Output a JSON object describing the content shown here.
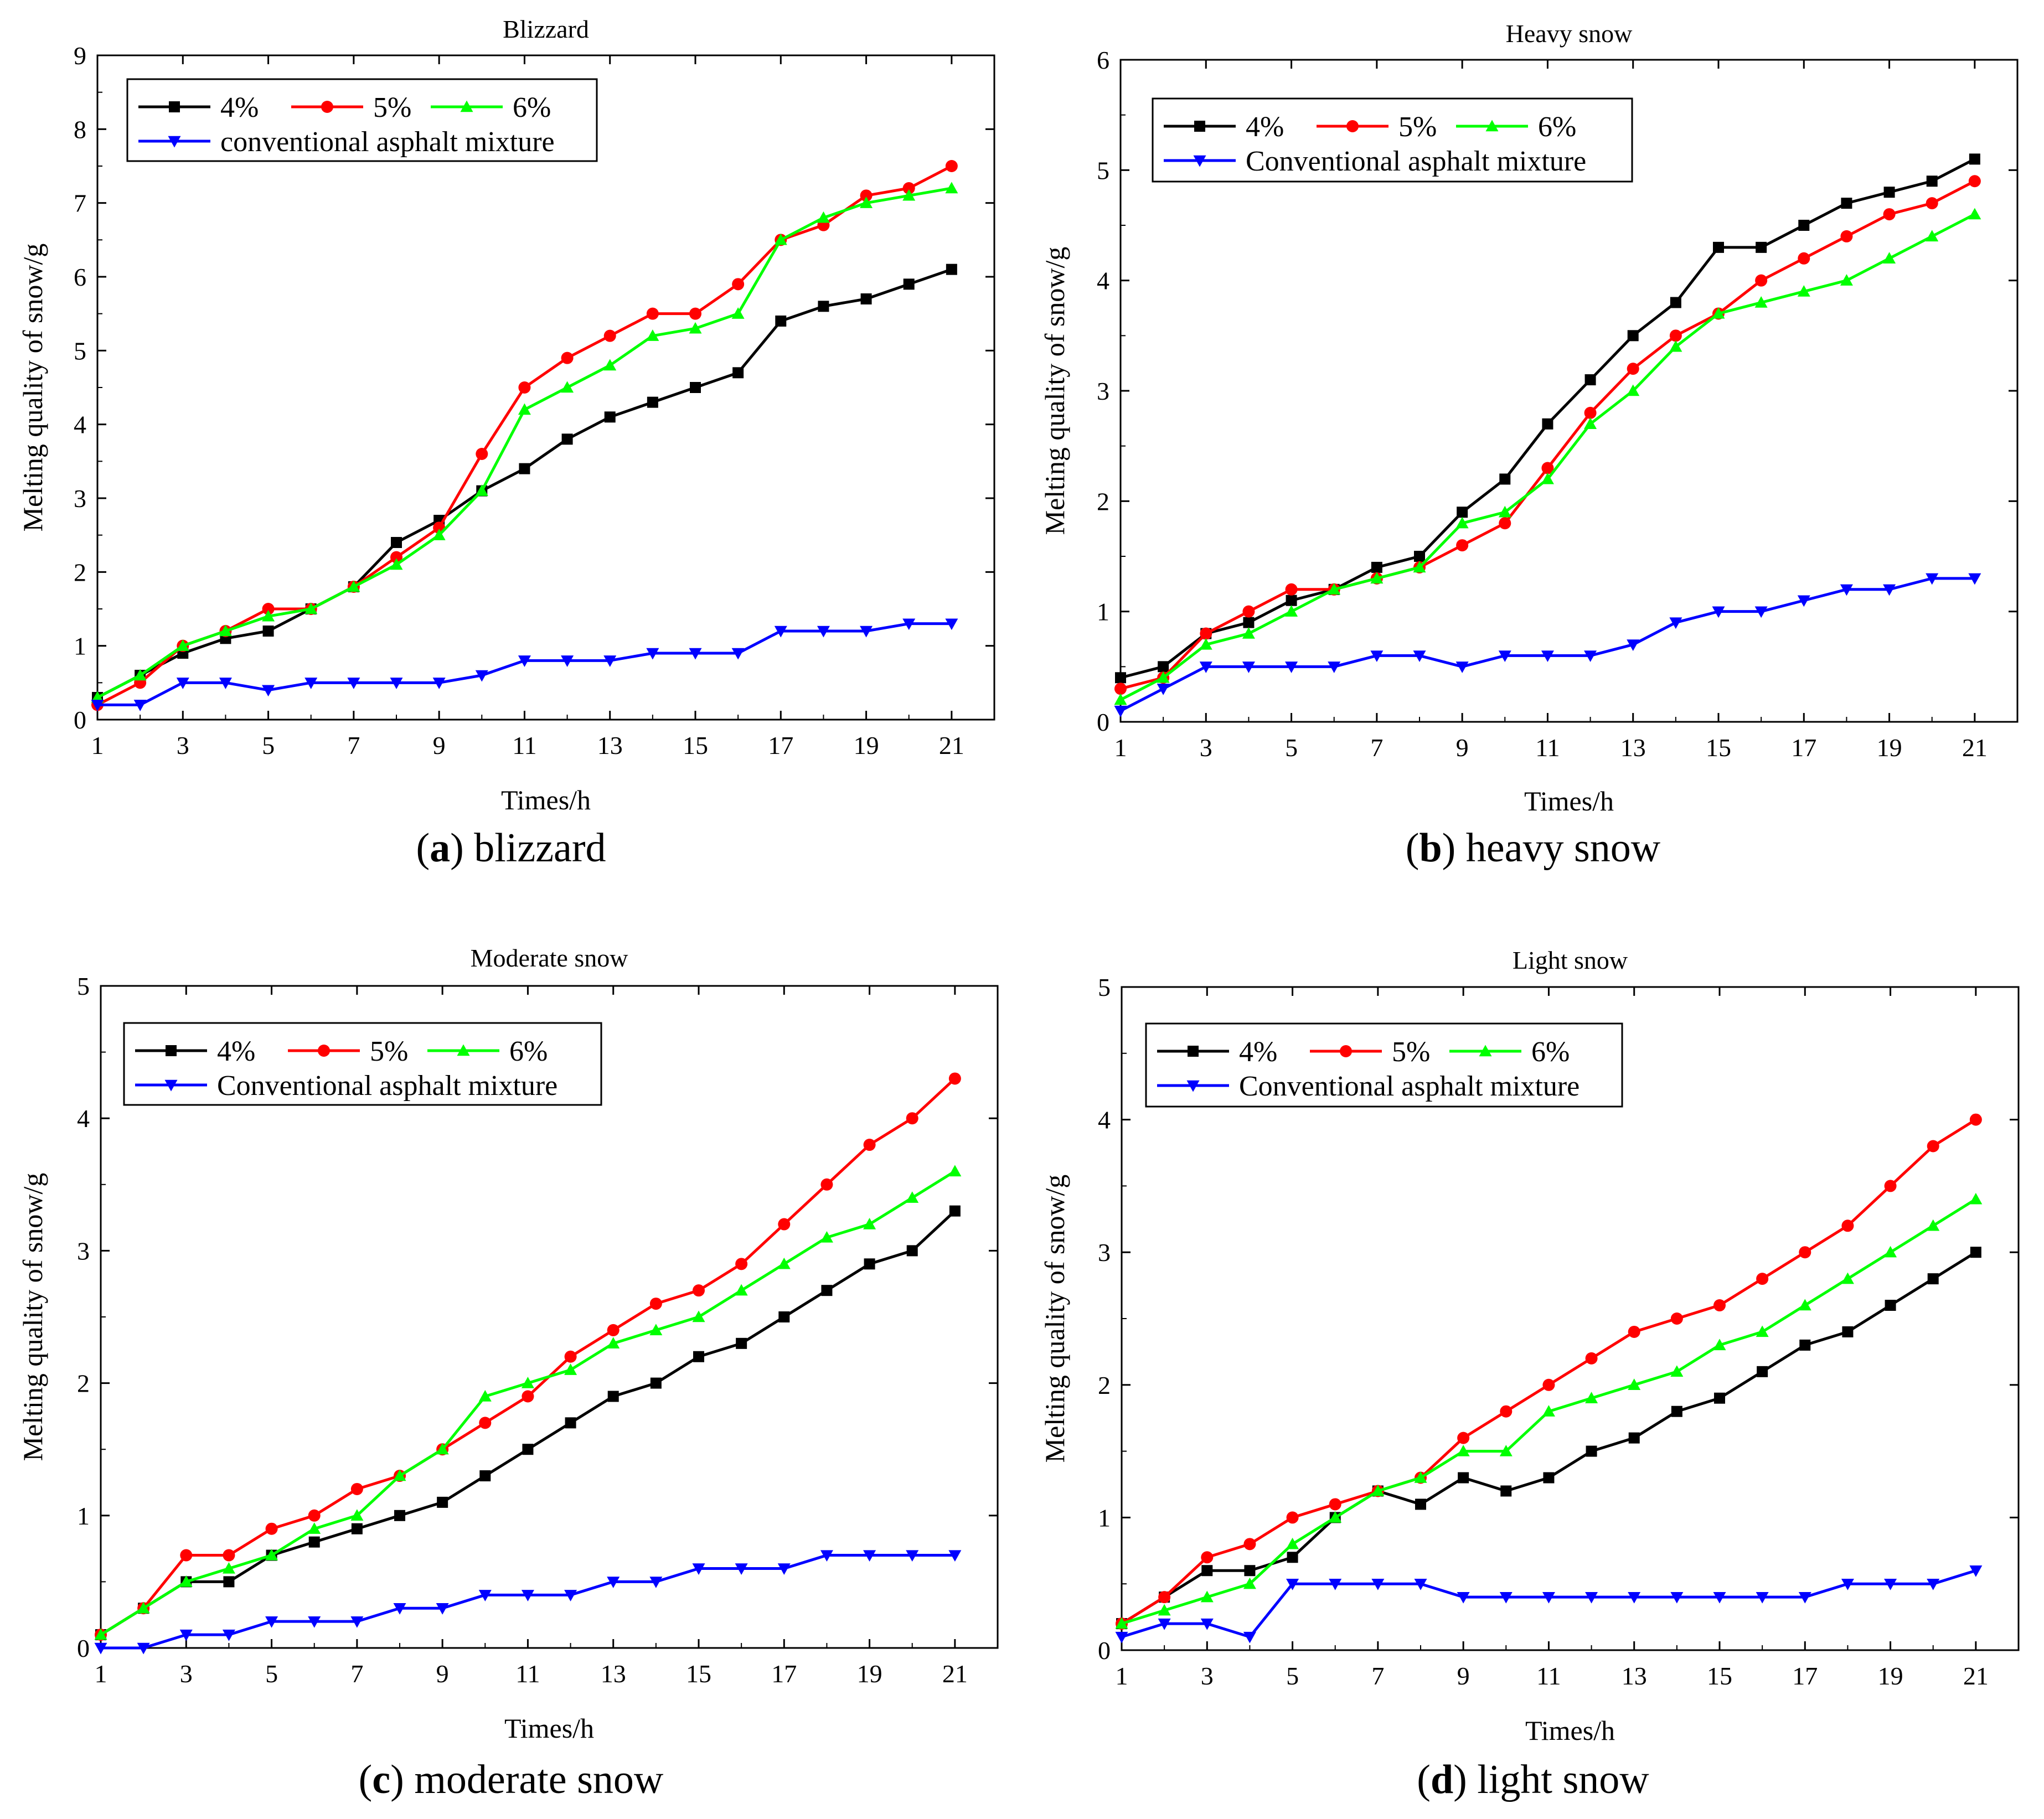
{
  "chart_data": [
    {
      "type": "line",
      "id": "a",
      "title": "Blizzard",
      "caption_letter": "a",
      "caption_text": " blizzard",
      "xlabel": "Times/h",
      "ylabel": "Melting quality of snow/g",
      "xlim": [
        1,
        22
      ],
      "ylim": [
        0,
        9
      ],
      "xticks": [
        1,
        3,
        5,
        7,
        9,
        11,
        13,
        15,
        17,
        19,
        21
      ],
      "yticks": [
        0,
        1,
        2,
        3,
        4,
        5,
        6,
        7,
        8,
        9
      ],
      "x": [
        1,
        2,
        3,
        4,
        5,
        6,
        7,
        8,
        9,
        10,
        11,
        12,
        13,
        14,
        15,
        16,
        17,
        18,
        19,
        20,
        21
      ],
      "series": [
        {
          "name": "4%",
          "color": "#000000",
          "marker": "square",
          "values": [
            0.3,
            0.6,
            0.9,
            1.1,
            1.2,
            1.5,
            1.8,
            2.4,
            2.7,
            3.1,
            3.4,
            3.8,
            4.1,
            4.3,
            4.5,
            4.7,
            5.4,
            5.6,
            5.7,
            5.9,
            6.1
          ]
        },
        {
          "name": "5%",
          "color": "#ff0000",
          "marker": "circle",
          "values": [
            0.2,
            0.5,
            1.0,
            1.2,
            1.5,
            1.5,
            1.8,
            2.2,
            2.6,
            3.6,
            4.5,
            4.9,
            5.2,
            5.5,
            5.5,
            5.9,
            6.5,
            6.7,
            7.1,
            7.2,
            7.5
          ]
        },
        {
          "name": "6%",
          "color": "#00ff00",
          "marker": "triangle-up",
          "values": [
            0.3,
            0.6,
            1.0,
            1.2,
            1.4,
            1.5,
            1.8,
            2.1,
            2.5,
            3.1,
            4.2,
            4.5,
            4.8,
            5.2,
            5.3,
            5.5,
            6.5,
            6.8,
            7.0,
            7.1,
            7.2
          ]
        },
        {
          "name": "conventional asphalt mixture",
          "color": "#0000ff",
          "marker": "triangle-down",
          "values": [
            0.2,
            0.2,
            0.5,
            0.5,
            0.4,
            0.5,
            0.5,
            0.5,
            0.5,
            0.6,
            0.8,
            0.8,
            0.8,
            0.9,
            0.9,
            0.9,
            1.2,
            1.2,
            1.2,
            1.3,
            1.3
          ]
        }
      ]
    },
    {
      "type": "line",
      "id": "b",
      "title": "Heavy snow",
      "caption_letter": "b",
      "caption_text": " heavy snow",
      "xlabel": "Times/h",
      "ylabel": "Melting quality of snow/g",
      "xlim": [
        1,
        22
      ],
      "ylim": [
        0,
        6
      ],
      "xticks": [
        1,
        3,
        5,
        7,
        9,
        11,
        13,
        15,
        17,
        19,
        21
      ],
      "yticks": [
        0,
        1,
        2,
        3,
        4,
        5,
        6
      ],
      "x": [
        1,
        2,
        3,
        4,
        5,
        6,
        7,
        8,
        9,
        10,
        11,
        12,
        13,
        14,
        15,
        16,
        17,
        18,
        19,
        20,
        21
      ],
      "series": [
        {
          "name": "4%",
          "color": "#000000",
          "marker": "square",
          "values": [
            0.4,
            0.5,
            0.8,
            0.9,
            1.1,
            1.2,
            1.4,
            1.5,
            1.9,
            2.2,
            2.7,
            3.1,
            3.5,
            3.8,
            4.3,
            4.3,
            4.5,
            4.7,
            4.8,
            4.9,
            5.1
          ]
        },
        {
          "name": "5%",
          "color": "#ff0000",
          "marker": "circle",
          "values": [
            0.3,
            0.4,
            0.8,
            1.0,
            1.2,
            1.2,
            1.3,
            1.4,
            1.6,
            1.8,
            2.3,
            2.8,
            3.2,
            3.5,
            3.7,
            4.0,
            4.2,
            4.4,
            4.6,
            4.7,
            4.9
          ]
        },
        {
          "name": "6%",
          "color": "#00ff00",
          "marker": "triangle-up",
          "values": [
            0.2,
            0.4,
            0.7,
            0.8,
            1.0,
            1.2,
            1.3,
            1.4,
            1.8,
            1.9,
            2.2,
            2.7,
            3.0,
            3.4,
            3.7,
            3.8,
            3.9,
            4.0,
            4.2,
            4.4,
            4.6
          ]
        },
        {
          "name": "Conventional asphalt mixture",
          "color": "#0000ff",
          "marker": "triangle-down",
          "values": [
            0.1,
            0.3,
            0.5,
            0.5,
            0.5,
            0.5,
            0.6,
            0.6,
            0.5,
            0.6,
            0.6,
            0.6,
            0.7,
            0.9,
            1.0,
            1.0,
            1.1,
            1.2,
            1.2,
            1.3,
            1.3
          ]
        }
      ]
    },
    {
      "type": "line",
      "id": "c",
      "title": "Moderate snow",
      "caption_letter": "c",
      "caption_text": " moderate snow",
      "xlabel": "Times/h",
      "ylabel": "Melting quality of snow/g",
      "xlim": [
        1,
        22
      ],
      "ylim": [
        0,
        5
      ],
      "xticks": [
        1,
        3,
        5,
        7,
        9,
        11,
        13,
        15,
        17,
        19,
        21
      ],
      "yticks": [
        0,
        1,
        2,
        3,
        4,
        5
      ],
      "x": [
        1,
        2,
        3,
        4,
        5,
        6,
        7,
        8,
        9,
        10,
        11,
        12,
        13,
        14,
        15,
        16,
        17,
        18,
        19,
        20,
        21
      ],
      "series": [
        {
          "name": "4%",
          "color": "#000000",
          "marker": "square",
          "values": [
            0.1,
            0.3,
            0.5,
            0.5,
            0.7,
            0.8,
            0.9,
            1.0,
            1.1,
            1.3,
            1.5,
            1.7,
            1.9,
            2.0,
            2.2,
            2.3,
            2.5,
            2.7,
            2.9,
            3.0,
            3.3
          ]
        },
        {
          "name": "5%",
          "color": "#ff0000",
          "marker": "circle",
          "values": [
            0.1,
            0.3,
            0.7,
            0.7,
            0.9,
            1.0,
            1.2,
            1.3,
            1.5,
            1.7,
            1.9,
            2.2,
            2.4,
            2.6,
            2.7,
            2.9,
            3.2,
            3.5,
            3.8,
            4.0,
            4.3
          ]
        },
        {
          "name": "6%",
          "color": "#00ff00",
          "marker": "triangle-up",
          "values": [
            0.1,
            0.3,
            0.5,
            0.6,
            0.7,
            0.9,
            1.0,
            1.3,
            1.5,
            1.9,
            2.0,
            2.1,
            2.3,
            2.4,
            2.5,
            2.7,
            2.9,
            3.1,
            3.2,
            3.4,
            3.6
          ]
        },
        {
          "name": "Conventional asphalt mixture",
          "color": "#0000ff",
          "marker": "triangle-down",
          "values": [
            0.0,
            0.0,
            0.1,
            0.1,
            0.2,
            0.2,
            0.2,
            0.3,
            0.3,
            0.4,
            0.4,
            0.4,
            0.5,
            0.5,
            0.6,
            0.6,
            0.6,
            0.7,
            0.7,
            0.7,
            0.7
          ]
        }
      ]
    },
    {
      "type": "line",
      "id": "d",
      "title": "Light snow",
      "caption_letter": "d",
      "caption_text": " light snow",
      "xlabel": "Times/h",
      "ylabel": "Melting quality of snow/g",
      "xlim": [
        1,
        22
      ],
      "ylim": [
        0,
        5
      ],
      "xticks": [
        1,
        3,
        5,
        7,
        9,
        11,
        13,
        15,
        17,
        19,
        21
      ],
      "yticks": [
        0,
        1,
        2,
        3,
        4,
        5
      ],
      "x": [
        1,
        2,
        3,
        4,
        5,
        6,
        7,
        8,
        9,
        10,
        11,
        12,
        13,
        14,
        15,
        16,
        17,
        18,
        19,
        20,
        21
      ],
      "series": [
        {
          "name": "4%",
          "color": "#000000",
          "marker": "square",
          "values": [
            0.2,
            0.4,
            0.6,
            0.6,
            0.7,
            1.0,
            1.2,
            1.1,
            1.3,
            1.2,
            1.3,
            1.5,
            1.6,
            1.8,
            1.9,
            2.1,
            2.3,
            2.4,
            2.6,
            2.8,
            3.0
          ]
        },
        {
          "name": "5%",
          "color": "#ff0000",
          "marker": "circle",
          "values": [
            0.2,
            0.4,
            0.7,
            0.8,
            1.0,
            1.1,
            1.2,
            1.3,
            1.6,
            1.8,
            2.0,
            2.2,
            2.4,
            2.5,
            2.6,
            2.8,
            3.0,
            3.2,
            3.5,
            3.8,
            4.0
          ]
        },
        {
          "name": "6%",
          "color": "#00ff00",
          "marker": "triangle-up",
          "values": [
            0.2,
            0.3,
            0.4,
            0.5,
            0.8,
            1.0,
            1.2,
            1.3,
            1.5,
            1.5,
            1.8,
            1.9,
            2.0,
            2.1,
            2.3,
            2.4,
            2.6,
            2.8,
            3.0,
            3.2,
            3.4
          ]
        },
        {
          "name": "Conventional asphalt mixture",
          "color": "#0000ff",
          "marker": "triangle-down",
          "values": [
            0.1,
            0.2,
            0.2,
            0.1,
            0.5,
            0.5,
            0.5,
            0.5,
            0.4,
            0.4,
            0.4,
            0.4,
            0.4,
            0.4,
            0.4,
            0.4,
            0.4,
            0.5,
            0.5,
            0.5,
            0.6
          ]
        }
      ]
    }
  ]
}
